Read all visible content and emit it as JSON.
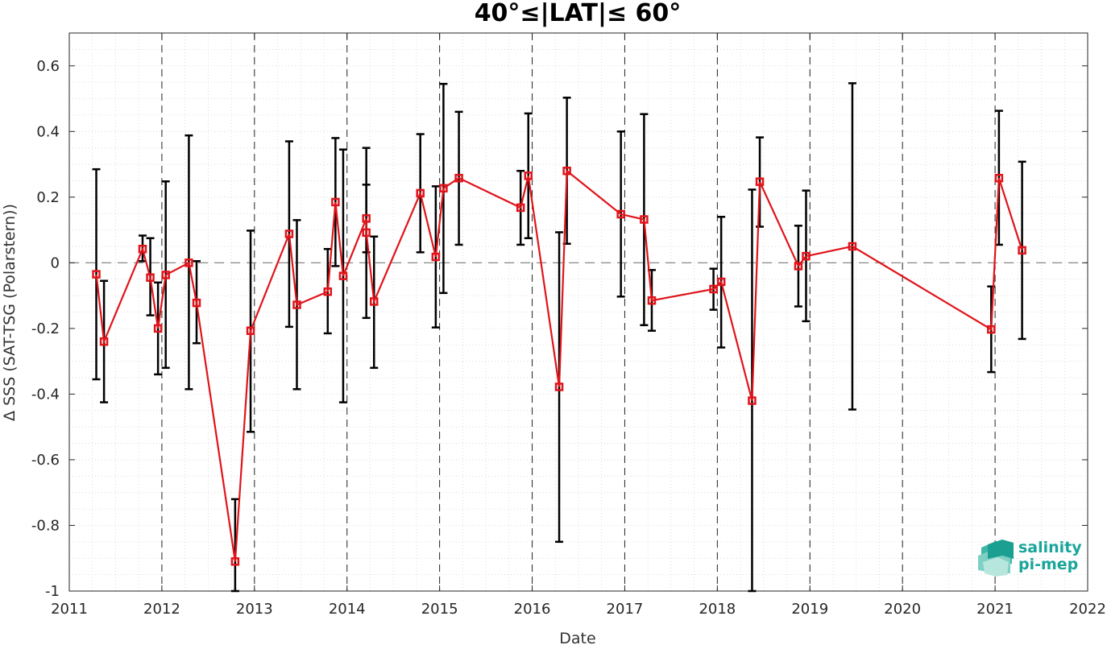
{
  "chart_data": {
    "type": "line",
    "title": "40°≤|LAT|≤ 60°",
    "xlabel": "Date",
    "ylabel": "Δ SSS (SAT-TSG (Polarstern))",
    "xlim": [
      2011,
      2022
    ],
    "ylim": [
      -1,
      0.7
    ],
    "x_ticks": [
      "2011",
      "2012",
      "2013",
      "2014",
      "2015",
      "2016",
      "2017",
      "2018",
      "2019",
      "2020",
      "2021",
      "2022"
    ],
    "y_ticks": [
      "0.6",
      "0.4",
      "0.2",
      "0",
      "-0.2",
      "-0.4",
      "-0.6",
      "-0.8",
      "-1"
    ],
    "grid": "dotted minor grid, dashed vertical lines at each year",
    "reference_line": 0,
    "series": [
      {
        "color": "#e0141a",
        "marker": "square",
        "points": [
          {
            "x": "2011-04",
            "y": -0.035,
            "low": -0.355,
            "high": 0.285
          },
          {
            "x": "2011-05",
            "y": -0.24,
            "low": -0.425,
            "high": -0.055
          },
          {
            "x": "2011-10",
            "y": 0.042,
            "low": 0.005,
            "high": 0.083
          },
          {
            "x": "2011-11",
            "y": -0.045,
            "low": -0.16,
            "high": 0.075
          },
          {
            "x": "2011-12",
            "y": -0.2,
            "low": -0.34,
            "high": -0.06
          },
          {
            "x": "2012-01",
            "y": -0.037,
            "low": -0.32,
            "high": 0.248
          },
          {
            "x": "2012-04",
            "y": 0.0,
            "low": -0.385,
            "high": 0.388
          },
          {
            "x": "2012-05",
            "y": -0.122,
            "low": -0.245,
            "high": 0.005
          },
          {
            "x": "2012-10",
            "y": -0.91,
            "low": -1.0,
            "high": -0.72
          },
          {
            "x": "2012-12",
            "y": -0.207,
            "low": -0.515,
            "high": 0.098
          },
          {
            "x": "2013-05",
            "y": 0.088,
            "low": -0.195,
            "high": 0.37
          },
          {
            "x": "2013-06",
            "y": -0.128,
            "low": -0.385,
            "high": 0.13
          },
          {
            "x": "2013-10",
            "y": -0.088,
            "low": -0.215,
            "high": 0.042
          },
          {
            "x": "2013-11",
            "y": 0.185,
            "low": -0.01,
            "high": 0.38
          },
          {
            "x": "2013-12",
            "y": -0.04,
            "low": -0.425,
            "high": 0.345
          },
          {
            "x": "2014-03",
            "y": 0.135,
            "low": 0.032,
            "high": 0.238
          },
          {
            "x": "2014-03",
            "y": 0.092,
            "low": -0.168,
            "high": 0.35
          },
          {
            "x": "2014-04",
            "y": -0.118,
            "low": -0.32,
            "high": 0.08
          },
          {
            "x": "2014-10",
            "y": 0.212,
            "low": 0.032,
            "high": 0.392
          },
          {
            "x": "2014-12",
            "y": 0.018,
            "low": -0.197,
            "high": 0.233
          },
          {
            "x": "2015-01",
            "y": 0.227,
            "low": -0.092,
            "high": 0.545
          },
          {
            "x": "2015-03",
            "y": 0.258,
            "low": 0.055,
            "high": 0.46
          },
          {
            "x": "2015-11",
            "y": 0.168,
            "low": 0.055,
            "high": 0.28
          },
          {
            "x": "2015-12",
            "y": 0.265,
            "low": 0.075,
            "high": 0.455
          },
          {
            "x": "2016-04",
            "y": -0.378,
            "low": -0.85,
            "high": 0.093
          },
          {
            "x": "2016-05",
            "y": 0.28,
            "low": 0.058,
            "high": 0.503
          },
          {
            "x": "2016-12",
            "y": 0.148,
            "low": -0.103,
            "high": 0.4
          },
          {
            "x": "2017-03",
            "y": 0.132,
            "low": -0.19,
            "high": 0.453
          },
          {
            "x": "2017-04",
            "y": -0.115,
            "low": -0.207,
            "high": -0.022
          },
          {
            "x": "2017-12",
            "y": -0.08,
            "low": -0.143,
            "high": -0.018
          },
          {
            "x": "2018-01",
            "y": -0.058,
            "low": -0.258,
            "high": 0.14
          },
          {
            "x": "2018-05",
            "y": -0.42,
            "low": -1.0,
            "high": 0.223
          },
          {
            "x": "2018-06",
            "y": 0.247,
            "low": 0.11,
            "high": 0.382
          },
          {
            "x": "2018-11",
            "y": -0.01,
            "low": -0.133,
            "high": 0.113
          },
          {
            "x": "2018-12",
            "y": 0.02,
            "low": -0.178,
            "high": 0.22
          },
          {
            "x": "2019-06",
            "y": 0.05,
            "low": -0.447,
            "high": 0.547
          },
          {
            "x": "2020-12",
            "y": -0.203,
            "low": -0.333,
            "high": -0.072
          },
          {
            "x": "2021-01",
            "y": 0.258,
            "low": 0.055,
            "high": 0.463
          },
          {
            "x": "2021-04",
            "y": 0.038,
            "low": -0.232,
            "high": 0.308
          }
        ]
      }
    ]
  },
  "logo": {
    "line1": "salinity",
    "line2": "pi-mep"
  },
  "colors": {
    "series": "#e0141a",
    "errorbar": "#000000",
    "logo": "#1aa59a"
  }
}
